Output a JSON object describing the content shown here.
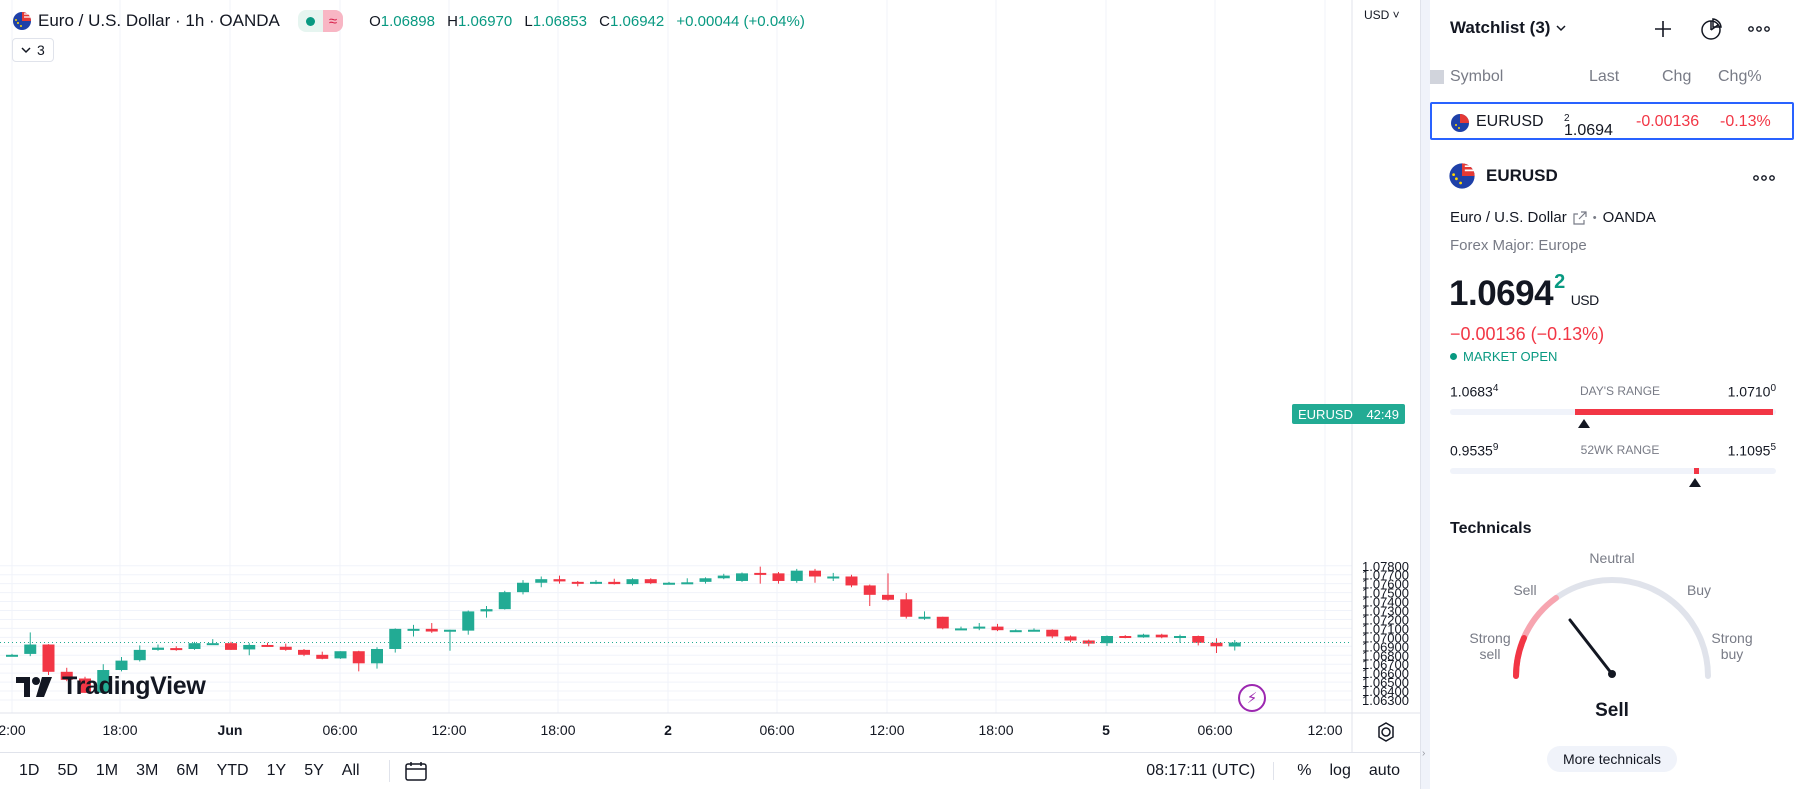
{
  "legend": {
    "title": "Euro / U.S. Dollar · 1h · OANDA",
    "wave_icon": "≈",
    "ohlc": {
      "o_label": "O",
      "o": "1.06898",
      "h_label": "H",
      "h": "1.06970",
      "l_label": "L",
      "l": "1.06853",
      "c_label": "C",
      "c": "1.06942",
      "change": "+0.00044 (+0.04%)"
    },
    "indicators_count": "3"
  },
  "brand": "TradingView",
  "currency_selector": "USD",
  "price_tag": {
    "symbol": "EURUSD",
    "countdown": "42:49"
  },
  "colors": {
    "up": "#22ab94",
    "down": "#f23645",
    "accent": "#2962ff",
    "grid": "#f0f3fa"
  },
  "chart_data": {
    "type": "candlestick",
    "y_ticks": [
      "1.07800",
      "1.07700",
      "1.07600",
      "1.07500",
      "1.07400",
      "1.07300",
      "1.07200",
      "1.07100",
      "1.07000",
      "1.06900",
      "1.06800",
      "1.06700",
      "1.06600",
      "1.06500",
      "1.06400",
      "1.06300"
    ],
    "ylim": [
      1.0628,
      1.0779
    ],
    "x_ticks": [
      "2:00",
      "18:00",
      "Jun",
      "06:00",
      "12:00",
      "18:00",
      "2",
      "06:00",
      "12:00",
      "18:00",
      "5",
      "06:00",
      "12:00"
    ],
    "candles": [
      [
        1.06805,
        1.06815,
        1.06795,
        1.06805
      ],
      [
        1.06815,
        1.07055,
        1.0679,
        1.0692
      ],
      [
        1.0692,
        1.06925,
        1.0658,
        1.06615
      ],
      [
        1.06615,
        1.0666,
        1.0651,
        1.06525
      ],
      [
        1.0654,
        1.0656,
        1.0638,
        1.0638
      ],
      [
        1.0638,
        1.067,
        1.0637,
        1.06635
      ],
      [
        1.06635,
        1.0678,
        1.0662,
        1.0674
      ],
      [
        1.06745,
        1.0691,
        1.0673,
        1.0686
      ],
      [
        1.0686,
        1.0692,
        1.0685,
        1.06885
      ],
      [
        1.0688,
        1.069,
        1.0685,
        1.06865
      ],
      [
        1.0687,
        1.0695,
        1.0686,
        1.06935
      ],
      [
        1.0693,
        1.0698,
        1.0692,
        1.06935
      ],
      [
        1.06935,
        1.0695,
        1.0686,
        1.0686
      ],
      [
        1.06865,
        1.06935,
        1.068,
        1.06915
      ],
      [
        1.06915,
        1.0694,
        1.069,
        1.06905
      ],
      [
        1.06895,
        1.0693,
        1.0685,
        1.0686
      ],
      [
        1.0686,
        1.0687,
        1.0679,
        1.06805
      ],
      [
        1.06805,
        1.0684,
        1.06755,
        1.0676
      ],
      [
        1.06765,
        1.06845,
        1.0676,
        1.06845
      ],
      [
        1.06845,
        1.0685,
        1.0662,
        1.0671
      ],
      [
        1.0671,
        1.0689,
        1.0665,
        1.0687
      ],
      [
        1.0687,
        1.071,
        1.0683,
        1.07095
      ],
      [
        1.07095,
        1.0714,
        1.0701,
        1.07095
      ],
      [
        1.07095,
        1.0716,
        1.0705,
        1.07065
      ],
      [
        1.07065,
        1.07085,
        1.0685,
        1.07085
      ],
      [
        1.07075,
        1.073,
        1.0703,
        1.0729
      ],
      [
        1.0729,
        1.0735,
        1.0722,
        1.07315
      ],
      [
        1.07315,
        1.0752,
        1.0731,
        1.07505
      ],
      [
        1.07505,
        1.0764,
        1.0748,
        1.0761
      ],
      [
        1.0761,
        1.0768,
        1.0756,
        1.0765
      ],
      [
        1.0765,
        1.0769,
        1.076,
        1.07625
      ],
      [
        1.0762,
        1.0763,
        1.0757,
        1.07615
      ],
      [
        1.0761,
        1.0764,
        1.07595,
        1.0762
      ],
      [
        1.0762,
        1.07655,
        1.0759,
        1.07595
      ],
      [
        1.07595,
        1.0766,
        1.0758,
        1.0765
      ],
      [
        1.0765,
        1.0766,
        1.07595,
        1.07605
      ],
      [
        1.07605,
        1.0762,
        1.0759,
        1.0761
      ],
      [
        1.0761,
        1.0766,
        1.07605,
        1.07615
      ],
      [
        1.0762,
        1.0767,
        1.076,
        1.0766
      ],
      [
        1.0766,
        1.0771,
        1.0765,
        1.0769
      ],
      [
        1.0763,
        1.07725,
        1.0762,
        1.07715
      ],
      [
        1.0772,
        1.0779,
        1.076,
        1.07715
      ],
      [
        1.07715,
        1.0773,
        1.076,
        1.0763
      ],
      [
        1.0763,
        1.07765,
        1.0761,
        1.07745
      ],
      [
        1.07745,
        1.07765,
        1.0761,
        1.0768
      ],
      [
        1.0768,
        1.0772,
        1.0763,
        1.0768
      ],
      [
        1.0768,
        1.077,
        1.0756,
        1.0758
      ],
      [
        1.0758,
        1.0759,
        1.0735,
        1.07475
      ],
      [
        1.07475,
        1.07715,
        1.0741,
        1.0742
      ],
      [
        1.07425,
        1.07495,
        1.0721,
        1.0723
      ],
      [
        1.0723,
        1.0729,
        1.07195,
        1.0723
      ],
      [
        1.0723,
        1.0723,
        1.0709,
        1.071
      ],
      [
        1.071,
        1.0712,
        1.0709,
        1.071
      ],
      [
        1.071,
        1.0716,
        1.0708,
        1.0712
      ],
      [
        1.0712,
        1.0715,
        1.0707,
        1.0708
      ],
      [
        1.0708,
        1.0709,
        1.07065,
        1.0708
      ],
      [
        1.0708,
        1.071,
        1.0707,
        1.07085
      ],
      [
        1.07085,
        1.0709,
        1.0699,
        1.0701
      ],
      [
        1.0701,
        1.0702,
        1.06945,
        1.06965
      ],
      [
        1.06965,
        1.06975,
        1.069,
        1.0693
      ],
      [
        1.06935,
        1.0702,
        1.06905,
        1.07015
      ],
      [
        1.07015,
        1.07025,
        1.0699,
        1.07
      ],
      [
        1.07,
        1.0704,
        1.06995,
        1.0703
      ],
      [
        1.0703,
        1.0704,
        1.0699,
        1.07
      ],
      [
        1.07,
        1.0703,
        1.0694,
        1.07015
      ],
      [
        1.07015,
        1.0702,
        1.0691,
        1.0694
      ],
      [
        1.0694,
        1.0699,
        1.06825,
        1.069
      ],
      [
        1.06898,
        1.0697,
        1.06853,
        1.06942
      ]
    ]
  },
  "bottom_bar": {
    "ranges": [
      "1D",
      "5D",
      "1M",
      "3M",
      "6M",
      "YTD",
      "1Y",
      "5Y",
      "All"
    ],
    "time": "08:17:11 (UTC)",
    "pct": "%",
    "log": "log",
    "auto": "auto"
  },
  "watchlist": {
    "title": "Watchlist (3)",
    "columns": {
      "symbol": "Symbol",
      "last": "Last",
      "chg": "Chg",
      "chg_pct": "Chg%"
    },
    "row": {
      "symbol": "EURUSD",
      "last": "1.0694",
      "last_sup": "2",
      "chg": "-0.00136",
      "chg_pct": "-0.13%"
    }
  },
  "details": {
    "symbol": "EURUSD",
    "name": "Euro / U.S. Dollar",
    "exchange": "OANDA",
    "separator": "•",
    "category": "Forex Major: Europe",
    "price": "1.0694",
    "price_sup": "2",
    "currency": "USD",
    "change": "−0.00136 (−0.13%)",
    "market_status": "MARKET OPEN",
    "days_range": {
      "label": "DAY'S RANGE",
      "low": "1.0683",
      "low_sup": "4",
      "high": "1.0710",
      "high_sup": "0"
    },
    "wk52_range": {
      "label": "52WK RANGE",
      "low": "0.9535",
      "low_sup": "9",
      "high": "1.1095",
      "high_sup": "5"
    }
  },
  "technicals": {
    "title": "Technicals",
    "labels": {
      "strong_sell_1": "Strong",
      "strong_sell_2": "sell",
      "sell": "Sell",
      "neutral": "Neutral",
      "buy": "Buy",
      "strong_buy_1": "Strong",
      "strong_buy_2": "buy"
    },
    "result": "Sell",
    "more_button": "More technicals"
  }
}
